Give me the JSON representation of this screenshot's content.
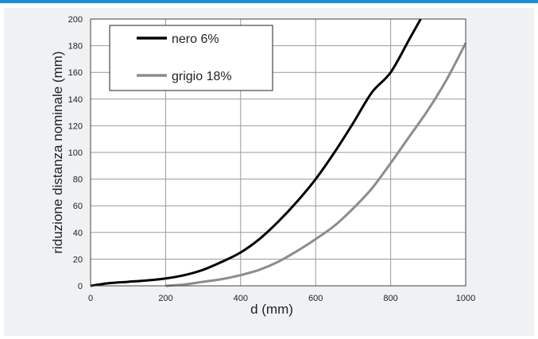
{
  "chart_data": {
    "type": "line",
    "title": "",
    "xlabel": "d (mm)",
    "ylabel": "riduzione distanza nominale (mm)",
    "xlim": [
      0,
      1000
    ],
    "ylim": [
      0,
      200
    ],
    "xticks": [
      0,
      200,
      400,
      600,
      800,
      1000
    ],
    "yticks": [
      0,
      20,
      40,
      60,
      80,
      100,
      120,
      140,
      160,
      180,
      200
    ],
    "grid": true,
    "legend_position": "top-left",
    "series": [
      {
        "name": "nero 6%",
        "color": "#000000",
        "x": [
          0,
          50,
          100,
          150,
          200,
          250,
          300,
          350,
          400,
          450,
          500,
          550,
          600,
          650,
          700,
          750,
          800,
          850,
          880
        ],
        "y": [
          0,
          2,
          3,
          4,
          5.5,
          8,
          12,
          18,
          25,
          35,
          48,
          63,
          80,
          100,
          122,
          145,
          160,
          185,
          200
        ]
      },
      {
        "name": "grigio 18%",
        "color": "#8c8c8c",
        "x": [
          200,
          250,
          300,
          350,
          400,
          450,
          500,
          550,
          600,
          650,
          700,
          750,
          800,
          850,
          900,
          950,
          1000
        ],
        "y": [
          0,
          1,
          3,
          5,
          8,
          12,
          18,
          26,
          35,
          45,
          58,
          73,
          92,
          112,
          132,
          155,
          182
        ]
      }
    ]
  }
}
